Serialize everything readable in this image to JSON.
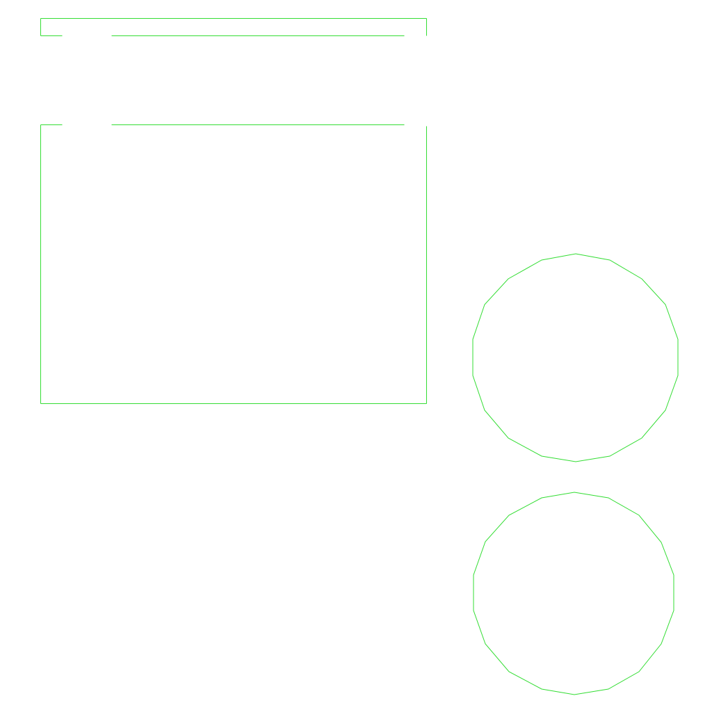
{
  "colors": {
    "background": "#ffffff",
    "outline": "#33dd33"
  },
  "shapes": {
    "top_frame": {
      "kind": "rectangle-outline"
    },
    "main_frame": {
      "kind": "rectangle-outline"
    },
    "upper_circle": {
      "kind": "polygon-circle",
      "sides": 20
    },
    "lower_circle": {
      "kind": "polygon-circle",
      "sides": 20
    }
  }
}
